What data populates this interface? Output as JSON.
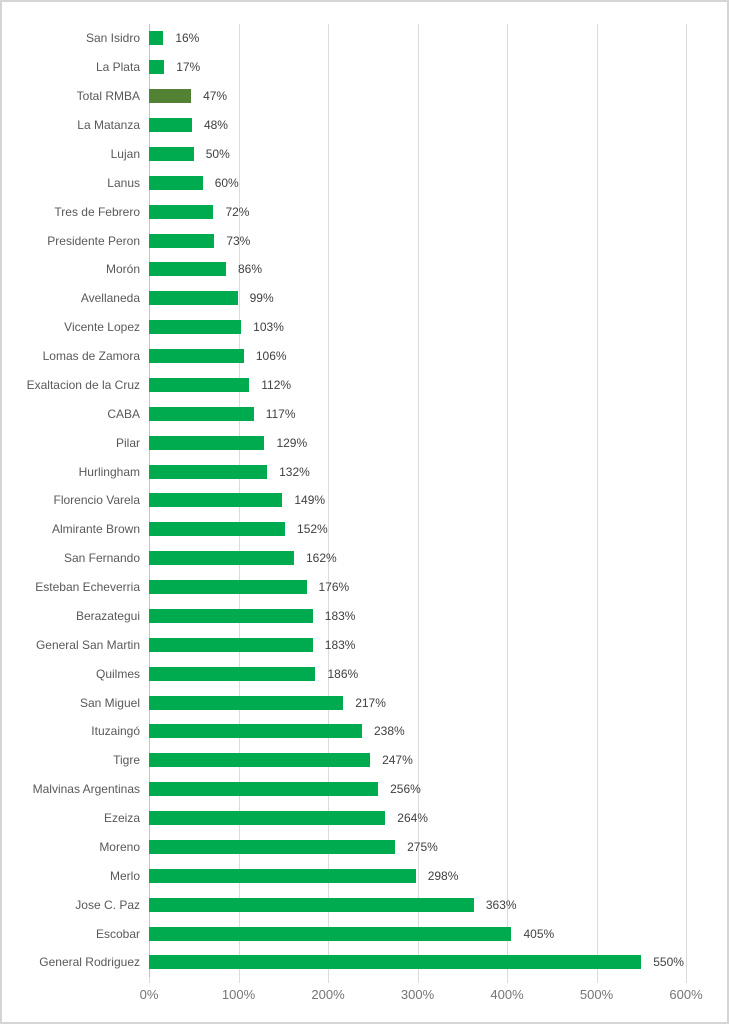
{
  "chart_data": {
    "type": "bar",
    "orientation": "horizontal",
    "title": "",
    "xlabel": "",
    "ylabel": "",
    "xlim": [
      0,
      600
    ],
    "x_tick_labels": [
      "0%",
      "100%",
      "200%",
      "300%",
      "400%",
      "500%",
      "600%"
    ],
    "grid": "vertical",
    "legend": "none",
    "categories": [
      "San Isidro",
      "La Plata",
      "Total RMBA",
      "La Matanza",
      "Lujan",
      "Lanus",
      "Tres de Febrero",
      "Presidente Peron",
      "Morón",
      "Avellaneda",
      "Vicente Lopez",
      "Lomas de Zamora",
      "Exaltacion de la Cruz",
      "CABA",
      "Pilar",
      "Hurlingham",
      "Florencio Varela",
      "Almirante Brown",
      "San Fernando",
      "Esteban Echeverria",
      "Berazategui",
      "General San Martin",
      "Quilmes",
      "San Miguel",
      "Ituzaingó",
      "Tigre",
      "Malvinas Argentinas",
      "Ezeiza",
      "Moreno",
      "Merlo",
      "Jose C. Paz",
      "Escobar",
      "General Rodriguez"
    ],
    "values": [
      16,
      17,
      47,
      48,
      50,
      60,
      72,
      73,
      86,
      99,
      103,
      106,
      112,
      117,
      129,
      132,
      149,
      152,
      162,
      176,
      183,
      183,
      186,
      217,
      238,
      247,
      256,
      264,
      275,
      298,
      363,
      405,
      550
    ],
    "value_labels": [
      "16%",
      "17%",
      "47%",
      "48%",
      "50%",
      "60%",
      "72%",
      "73%",
      "86%",
      "99%",
      "103%",
      "106%",
      "112%",
      "117%",
      "129%",
      "132%",
      "149%",
      "152%",
      "162%",
      "176%",
      "183%",
      "183%",
      "186%",
      "217%",
      "238%",
      "247%",
      "256%",
      "264%",
      "275%",
      "298%",
      "363%",
      "405%",
      "550%"
    ],
    "highlighted_category": "Total RMBA"
  },
  "theme": {
    "bar_color": "#00AB4F",
    "highlight_bar_color": "#548235",
    "gridline_color": "#DBDBDB",
    "axis_line_color": "#C6C6C6",
    "category_label_color": "#595959",
    "value_label_color": "#404040",
    "axis_tick_label_color": "#757575",
    "background_color": "#FFFFFF",
    "frame_border_color": "#D5D5D5"
  }
}
